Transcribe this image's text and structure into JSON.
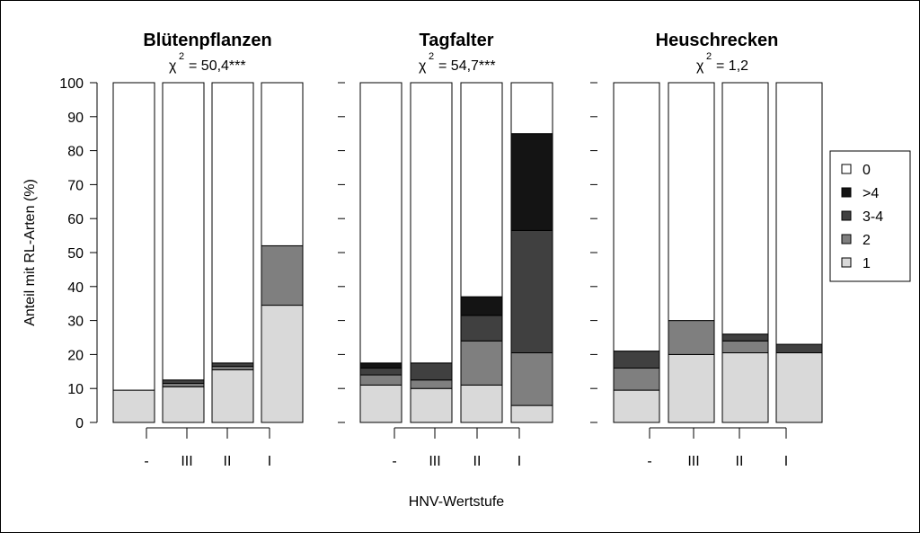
{
  "figure": {
    "x_axis_label": "HNV-Wertstufe",
    "y_axis_label": "Anteil mit RL-Arten (%)",
    "y_ticks": [
      "0",
      "10",
      "20",
      "30",
      "40",
      "50",
      "60",
      "70",
      "80",
      "90",
      "100"
    ]
  },
  "legend": {
    "items": [
      {
        "label": "0",
        "color": "#ffffff"
      },
      {
        "label": ">4",
        "color": "#141414"
      },
      {
        "label": "3-4",
        "color": "#404040"
      },
      {
        "label": "2",
        "color": "#7f7f7f"
      },
      {
        "label": "1",
        "color": "#d9d9d9"
      }
    ]
  },
  "chart_data": [
    {
      "type": "bar",
      "stacked": true,
      "title": "Blütenpflanzen",
      "chi_label": "= 50,4***",
      "categories": [
        "-",
        "III",
        "II",
        "I"
      ],
      "ylim": [
        0,
        100
      ],
      "series": [
        {
          "name": "1",
          "color": "#d9d9d9",
          "values": [
            9.5,
            10.5,
            15.5,
            34.5
          ]
        },
        {
          "name": "2",
          "color": "#7f7f7f",
          "values": [
            0,
            1.0,
            1.0,
            17.5
          ]
        },
        {
          "name": "3-4",
          "color": "#404040",
          "values": [
            0,
            1.0,
            1.0,
            0
          ]
        },
        {
          "name": ">4",
          "color": "#141414",
          "values": [
            0,
            0,
            0,
            0
          ]
        },
        {
          "name": "0",
          "color": "#ffffff",
          "values": [
            90.5,
            87.5,
            82.5,
            48.0
          ]
        }
      ]
    },
    {
      "type": "bar",
      "stacked": true,
      "title": "Tagfalter",
      "chi_label": "= 54,7***",
      "categories": [
        "-",
        "III",
        "II",
        "I"
      ],
      "ylim": [
        0,
        100
      ],
      "series": [
        {
          "name": "1",
          "color": "#d9d9d9",
          "values": [
            11.0,
            10.0,
            11.0,
            5.0
          ]
        },
        {
          "name": "2",
          "color": "#7f7f7f",
          "values": [
            3.0,
            2.5,
            13.0,
            15.5
          ]
        },
        {
          "name": "3-4",
          "color": "#404040",
          "values": [
            2.0,
            5.0,
            7.5,
            36.0
          ]
        },
        {
          "name": ">4",
          "color": "#141414",
          "values": [
            1.5,
            0,
            5.5,
            28.5
          ]
        },
        {
          "name": "0",
          "color": "#ffffff",
          "values": [
            82.5,
            82.5,
            63.0,
            15.0
          ]
        }
      ]
    },
    {
      "type": "bar",
      "stacked": true,
      "title": "Heuschrecken",
      "chi_label": "= 1,2",
      "categories": [
        "-",
        "III",
        "II",
        "I"
      ],
      "ylim": [
        0,
        100
      ],
      "series": [
        {
          "name": "1",
          "color": "#d9d9d9",
          "values": [
            9.5,
            20.0,
            20.5,
            20.5
          ]
        },
        {
          "name": "2",
          "color": "#7f7f7f",
          "values": [
            6.5,
            10.0,
            3.5,
            0
          ]
        },
        {
          "name": "3-4",
          "color": "#404040",
          "values": [
            5.0,
            0,
            2.0,
            2.5
          ]
        },
        {
          "name": ">4",
          "color": "#141414",
          "values": [
            0,
            0,
            0,
            0
          ]
        },
        {
          "name": "0",
          "color": "#ffffff",
          "values": [
            79.0,
            70.0,
            74.0,
            77.0
          ]
        }
      ]
    }
  ]
}
